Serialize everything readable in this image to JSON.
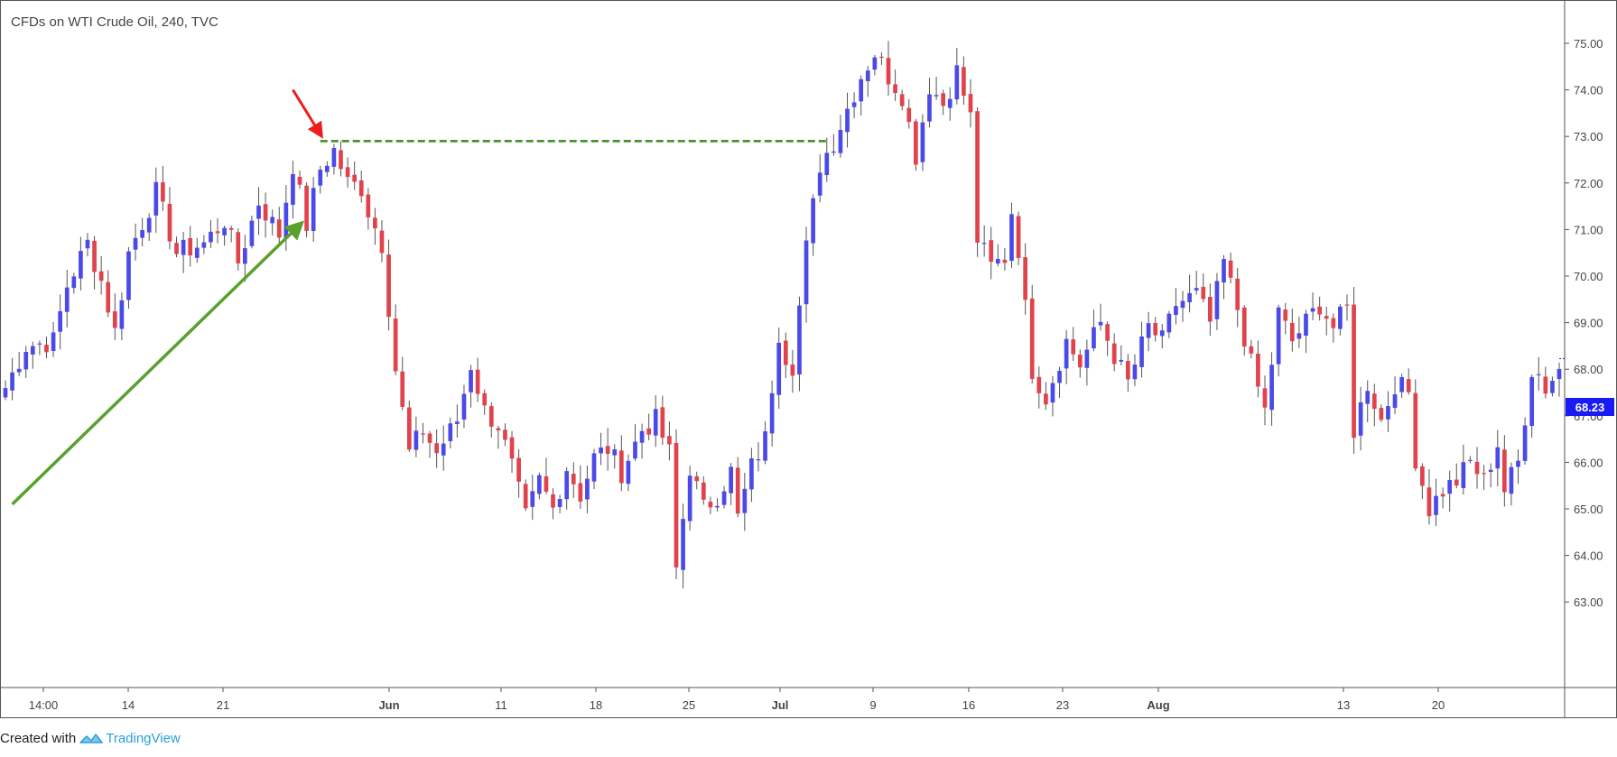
{
  "chart": {
    "title": "CFDs on WTI Crude Oil, 240, TVC",
    "current_price": "68.23"
  },
  "footer": {
    "created_with": "Created with",
    "brand": "TradingView"
  },
  "colors": {
    "up": "#4a4ae8",
    "down": "#e0434b",
    "support_arrow": "#5aa02c",
    "marker_arrow": "#ee1c1c",
    "level_line": "#3a8a1a",
    "badge": "#1a1af5"
  },
  "chart_data": {
    "type": "candlestick",
    "title": "CFDs on WTI Crude Oil, 240, TVC",
    "ylim": [
      63.0,
      75.25
    ],
    "y_ticks": [
      "75.00",
      "74.00",
      "73.00",
      "72.00",
      "71.00",
      "70.00",
      "69.00",
      "68.00",
      "67.00",
      "66.00",
      "65.00",
      "64.00",
      "63.00"
    ],
    "x_ticks": [
      "14:00",
      "14",
      "21",
      "Jun",
      "11",
      "18",
      "25",
      "Jul",
      "9",
      "16",
      "23",
      "Aug",
      "13",
      "20"
    ],
    "grid": false,
    "close_path": [
      [
        0,
        67.6
      ],
      [
        3,
        68.5
      ],
      [
        7,
        68.6
      ],
      [
        9,
        69.8
      ],
      [
        12,
        70.7
      ],
      [
        14,
        69.9
      ],
      [
        16,
        68.8
      ],
      [
        18,
        70.5
      ],
      [
        22,
        71.8
      ],
      [
        25,
        70.5
      ],
      [
        29,
        70.7
      ],
      [
        32,
        71.2
      ],
      [
        34,
        70.3
      ],
      [
        37,
        71.6
      ],
      [
        40,
        70.9
      ],
      [
        42,
        72.4
      ],
      [
        44,
        71.1
      ],
      [
        46,
        72.3
      ],
      [
        48,
        72.7
      ],
      [
        50,
        72.0
      ],
      [
        52,
        71.9
      ],
      [
        53,
        71.4
      ],
      [
        55,
        70.7
      ],
      [
        57,
        68.0
      ],
      [
        59,
        66.2
      ],
      [
        61,
        66.7
      ],
      [
        63,
        66.2
      ],
      [
        66,
        66.9
      ],
      [
        68,
        68.1
      ],
      [
        70,
        67.1
      ],
      [
        72,
        66.8
      ],
      [
        74,
        65.9
      ],
      [
        76,
        64.8
      ],
      [
        78,
        65.6
      ],
      [
        80,
        65.0
      ],
      [
        82,
        65.9
      ],
      [
        84,
        65.3
      ],
      [
        86,
        66.1
      ],
      [
        88,
        66.3
      ],
      [
        90,
        65.8
      ],
      [
        93,
        66.7
      ],
      [
        95,
        66.9
      ],
      [
        97,
        66.2
      ],
      [
        98,
        63.7
      ],
      [
        100,
        65.9
      ],
      [
        102,
        65.0
      ],
      [
        104,
        65.3
      ],
      [
        106,
        65.8
      ],
      [
        107,
        64.8
      ],
      [
        109,
        65.9
      ],
      [
        111,
        66.5
      ],
      [
        113,
        68.8
      ],
      [
        114,
        68.3
      ],
      [
        115,
        68.1
      ],
      [
        117,
        70.6
      ],
      [
        119,
        72.4
      ],
      [
        121,
        72.9
      ],
      [
        123,
        73.6
      ],
      [
        125,
        74.3
      ],
      [
        127,
        74.8
      ],
      [
        129,
        74.3
      ],
      [
        131,
        73.9
      ],
      [
        133,
        72.6
      ],
      [
        135,
        74.1
      ],
      [
        137,
        73.7
      ],
      [
        139,
        74.4
      ],
      [
        141,
        73.4
      ],
      [
        142,
        70.8
      ],
      [
        144,
        70.2
      ],
      [
        146,
        70.4
      ],
      [
        147,
        71.4
      ],
      [
        148,
        70.6
      ],
      [
        150,
        68.0
      ],
      [
        152,
        67.4
      ],
      [
        155,
        68.6
      ],
      [
        157,
        68.1
      ],
      [
        160,
        69.0
      ],
      [
        162,
        68.3
      ],
      [
        164,
        67.7
      ],
      [
        167,
        68.9
      ],
      [
        169,
        68.6
      ],
      [
        171,
        69.4
      ],
      [
        174,
        69.6
      ],
      [
        176,
        69.0
      ],
      [
        178,
        70.3
      ],
      [
        180,
        69.3
      ],
      [
        182,
        68.1
      ],
      [
        184,
        67.1
      ],
      [
        186,
        69.2
      ],
      [
        188,
        68.6
      ],
      [
        190,
        69.0
      ],
      [
        192,
        69.4
      ],
      [
        194,
        68.9
      ],
      [
        196,
        69.3
      ],
      [
        197,
        66.7
      ],
      [
        199,
        67.7
      ],
      [
        201,
        66.9
      ],
      [
        203,
        67.7
      ],
      [
        205,
        67.5
      ],
      [
        206,
        66.1
      ],
      [
        208,
        65.0
      ],
      [
        210,
        65.4
      ],
      [
        212,
        65.6
      ],
      [
        214,
        66.0
      ],
      [
        216,
        65.6
      ],
      [
        218,
        66.4
      ],
      [
        219,
        65.4
      ],
      [
        221,
        66.0
      ],
      [
        223,
        68.0
      ],
      [
        224,
        67.9
      ],
      [
        225,
        67.6
      ],
      [
        227,
        68.0
      ]
    ],
    "annotations": [
      {
        "type": "arrow",
        "label": "",
        "color": "green",
        "from": {
          "i": 1,
          "price": 65.1
        },
        "to": {
          "i": 43,
          "price": 71.1
        }
      },
      {
        "type": "arrow",
        "label": "",
        "color": "red",
        "from": {
          "i": 42,
          "price": 74.0
        },
        "to": {
          "i": 46,
          "price": 73.05
        }
      },
      {
        "type": "dashed-hline",
        "label": "",
        "color": "green",
        "price": 72.9,
        "from_i": 46,
        "to_i": 120
      }
    ]
  }
}
